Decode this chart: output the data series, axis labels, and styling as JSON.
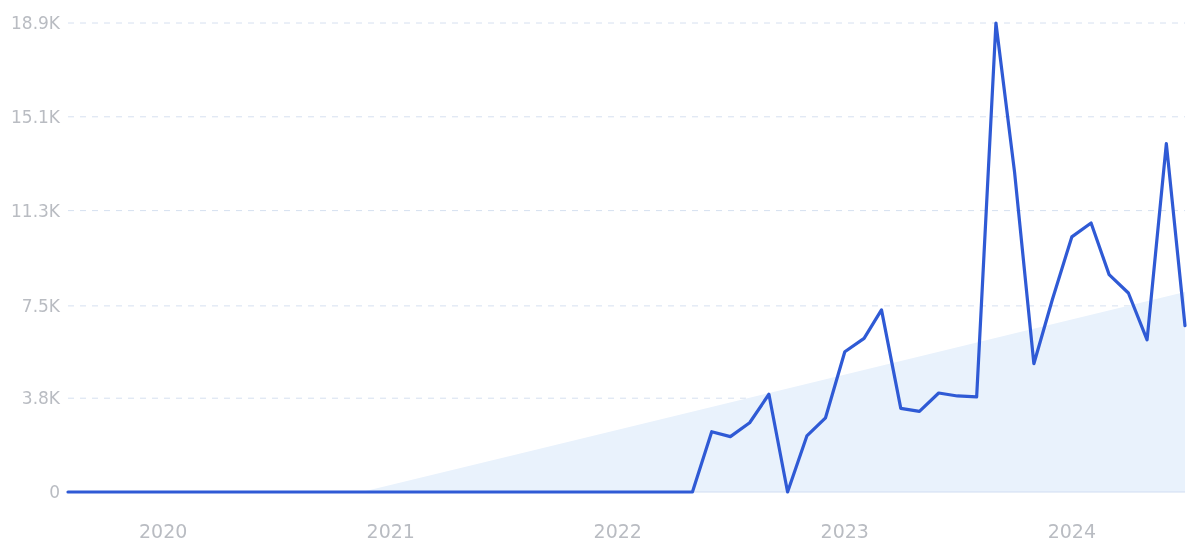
{
  "chart_data": {
    "type": "line",
    "xlim": [
      "2019-08",
      "2024-07"
    ],
    "xticks": [
      "2020",
      "2021",
      "2022",
      "2023",
      "2024"
    ],
    "ylim": [
      0,
      18900
    ],
    "yticks": [
      0,
      {
        "value": 3780,
        "label": "3.8K"
      },
      {
        "value": 7500,
        "label": "7.5K"
      },
      {
        "value": 11340,
        "label": "11.3K"
      },
      {
        "value": 15120,
        "label": "15.1K"
      },
      {
        "value": 18900,
        "label": "18.9K"
      }
    ],
    "grid": "y",
    "series": [
      {
        "type": "area",
        "color": "#e9f2fc",
        "x": [
          "2020-11-15",
          "2024-07"
        ],
        "values": [
          0,
          8060
        ]
      },
      {
        "color": "#2f5ad5",
        "x": [
          "2019-08",
          "2019-09",
          "2019-10",
          "2019-11",
          "2019-12",
          "2020-01",
          "2020-02",
          "2020-03",
          "2020-04",
          "2020-05",
          "2020-06",
          "2020-07",
          "2020-08",
          "2020-09",
          "2020-10",
          "2020-11",
          "2020-12",
          "2021-01",
          "2021-02",
          "2021-03",
          "2021-04",
          "2021-05",
          "2021-06",
          "2021-07",
          "2021-08",
          "2021-09",
          "2021-10",
          "2021-11",
          "2021-12",
          "2022-01",
          "2022-02",
          "2022-03",
          "2022-04",
          "2022-05",
          "2022-06",
          "2022-07",
          "2022-08",
          "2022-09",
          "2022-10",
          "2022-11",
          "2022-12",
          "2023-01",
          "2023-02",
          "2023-03",
          "2023-04",
          "2023-05",
          "2023-06",
          "2023-07",
          "2023-08",
          "2023-09",
          "2023-10",
          "2023-11",
          "2023-12",
          "2024-01",
          "2024-02",
          "2024-03",
          "2024-04",
          "2024-05",
          "2024-06",
          "2024-07"
        ],
        "values": [
          0,
          0,
          0,
          0,
          0,
          0,
          0,
          0,
          0,
          0,
          0,
          0,
          0,
          0,
          0,
          0,
          0,
          0,
          0,
          0,
          0,
          0,
          0,
          0,
          0,
          0,
          0,
          0,
          0,
          0,
          0,
          0,
          0,
          0,
          2430,
          2230,
          2790,
          3940,
          0,
          2260,
          2990,
          5650,
          6190,
          7340,
          3370,
          3250,
          3990,
          3870,
          3830,
          18900,
          12880,
          5170,
          7780,
          10280,
          10840,
          8760,
          8020,
          6130,
          14040,
          6700
        ]
      }
    ]
  }
}
